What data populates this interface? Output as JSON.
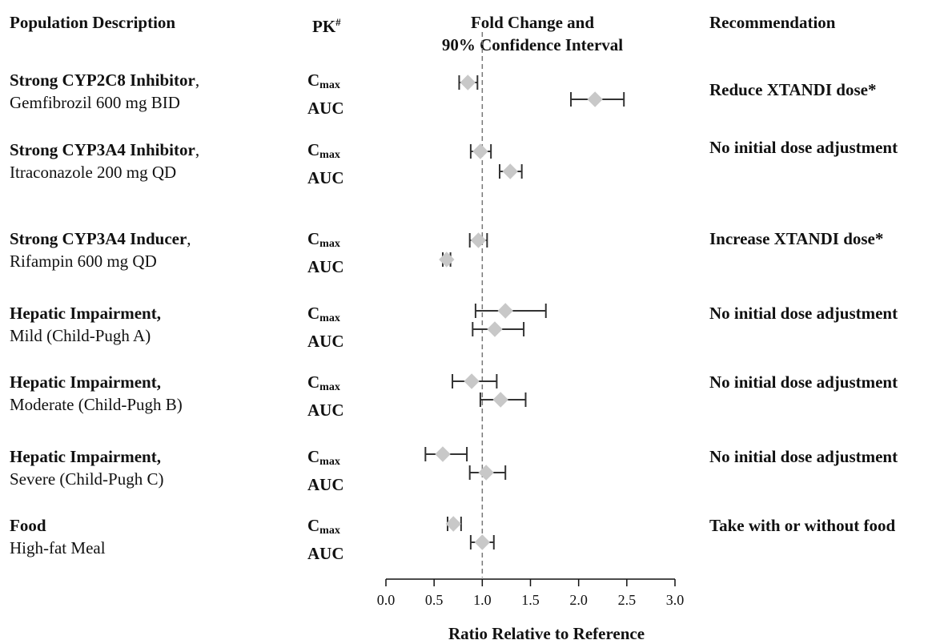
{
  "headers": {
    "population": "Population Description",
    "pk": "PK",
    "pk_mark": "#",
    "fold_line1": "Fold Change and",
    "fold_line2": "90% Confidence Interval",
    "recommendation": "Recommendation"
  },
  "groups": [
    {
      "title": "Strong CYP2C8 Inhibitor",
      "sep": ",",
      "desc": "Gemfibrozil 600 mg BID",
      "pk1": "C",
      "pk1_sub": "max",
      "pk2": "AUC",
      "recommendation": "Reduce XTANDI dose*"
    },
    {
      "title": "Strong CYP3A4 Inhibitor",
      "sep": ",",
      "desc": "Itraconazole 200 mg QD",
      "pk1": "C",
      "pk1_sub": "max",
      "pk2": "AUC",
      "recommendation": "No initial dose adjustment"
    },
    {
      "title": "Strong CYP3A4 Inducer",
      "sep": ",",
      "desc": "Rifampin 600 mg QD",
      "pk1": "C",
      "pk1_sub": "max",
      "pk2": "AUC",
      "recommendation": "Increase XTANDI dose*"
    },
    {
      "title": "Hepatic Impairment,",
      "sep": "",
      "desc": "Mild (Child-Pugh A)",
      "pk1": "C",
      "pk1_sub": "max",
      "pk2": "AUC",
      "recommendation": "No initial dose adjustment"
    },
    {
      "title": "Hepatic Impairment,",
      "sep": "",
      "desc": "Moderate (Child-Pugh B)",
      "pk1": "C",
      "pk1_sub": "max",
      "pk2": "AUC",
      "recommendation": "No initial dose adjustment"
    },
    {
      "title": "Hepatic Impairment,",
      "sep": "",
      "desc": "Severe (Child-Pugh C)",
      "pk1": "C",
      "pk1_sub": "max",
      "pk2": "AUC",
      "recommendation": "No initial dose adjustment"
    },
    {
      "title": "Food",
      "sep": "",
      "desc": "High-fat Meal",
      "pk1": "C",
      "pk1_sub": "max",
      "pk2": "AUC",
      "recommendation": "Take with or without food"
    }
  ],
  "chart_data": {
    "type": "forest",
    "xlabel": "Ratio Relative to Reference",
    "xlim": [
      0.0,
      3.0
    ],
    "ticks": [
      "0.0",
      "0.5",
      "1.0",
      "1.5",
      "2.0",
      "2.5",
      "3.0"
    ],
    "reference_line": 1.0,
    "colors": {
      "marker": "#c8c8c8",
      "whisker": "#333333",
      "reference": "#777777",
      "axis": "#111111"
    },
    "series": [
      {
        "group": "Strong CYP2C8 Inhibitor",
        "pk": "Cmax",
        "estimate": 0.85,
        "lower": 0.76,
        "upper": 0.95
      },
      {
        "group": "Strong CYP2C8 Inhibitor",
        "pk": "AUC",
        "estimate": 2.17,
        "lower": 1.92,
        "upper": 2.47
      },
      {
        "group": "Strong CYP3A4 Inhibitor",
        "pk": "Cmax",
        "estimate": 0.98,
        "lower": 0.88,
        "upper": 1.09
      },
      {
        "group": "Strong CYP3A4 Inhibitor",
        "pk": "AUC",
        "estimate": 1.29,
        "lower": 1.18,
        "upper": 1.41
      },
      {
        "group": "Strong CYP3A4 Inducer",
        "pk": "Cmax",
        "estimate": 0.96,
        "lower": 0.87,
        "upper": 1.05
      },
      {
        "group": "Strong CYP3A4 Inducer",
        "pk": "AUC",
        "estimate": 0.63,
        "lower": 0.59,
        "upper": 0.67
      },
      {
        "group": "Hepatic Impairment, Mild (Child-Pugh A)",
        "pk": "Cmax",
        "estimate": 1.24,
        "lower": 0.93,
        "upper": 1.66
      },
      {
        "group": "Hepatic Impairment, Mild (Child-Pugh A)",
        "pk": "AUC",
        "estimate": 1.13,
        "lower": 0.9,
        "upper": 1.43
      },
      {
        "group": "Hepatic Impairment, Moderate (Child-Pugh B)",
        "pk": "Cmax",
        "estimate": 0.89,
        "lower": 0.69,
        "upper": 1.15
      },
      {
        "group": "Hepatic Impairment, Moderate (Child-Pugh B)",
        "pk": "AUC",
        "estimate": 1.19,
        "lower": 0.98,
        "upper": 1.45
      },
      {
        "group": "Hepatic Impairment, Severe (Child-Pugh C)",
        "pk": "Cmax",
        "estimate": 0.59,
        "lower": 0.41,
        "upper": 0.84
      },
      {
        "group": "Hepatic Impairment, Severe (Child-Pugh C)",
        "pk": "AUC",
        "estimate": 1.04,
        "lower": 0.87,
        "upper": 1.24
      },
      {
        "group": "Food",
        "pk": "Cmax",
        "estimate": 0.7,
        "lower": 0.64,
        "upper": 0.78
      },
      {
        "group": "Food",
        "pk": "AUC",
        "estimate": 1.0,
        "lower": 0.88,
        "upper": 1.12
      }
    ]
  }
}
